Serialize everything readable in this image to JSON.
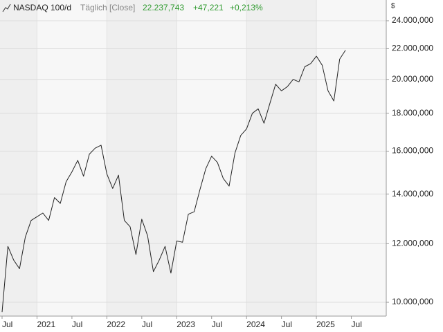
{
  "chart_data": {
    "type": "line",
    "title": "NASDAQ 100/d",
    "subtitle": "Täglich [Close]",
    "last": "22.237,743",
    "change": "+47,221",
    "change_pct": "+0,213%",
    "y_unit": "$",
    "log_y": true,
    "grid": true,
    "x": [
      "2020-07",
      "2020-08",
      "2020-09",
      "2020-10",
      "2020-11",
      "2020-12",
      "2021-01",
      "2021-02",
      "2021-03",
      "2021-04",
      "2021-05",
      "2021-06",
      "2021-07",
      "2021-08",
      "2021-09",
      "2021-10",
      "2021-11",
      "2021-12",
      "2022-01",
      "2022-02",
      "2022-03",
      "2022-04",
      "2022-05",
      "2022-06",
      "2022-07",
      "2022-08",
      "2022-09",
      "2022-10",
      "2022-11",
      "2022-12",
      "2023-01",
      "2023-02",
      "2023-03",
      "2023-04",
      "2023-05",
      "2023-06",
      "2023-07",
      "2023-08",
      "2023-09",
      "2023-10",
      "2023-11",
      "2023-12",
      "2024-01",
      "2024-02",
      "2024-03",
      "2024-04",
      "2024-05",
      "2024-06",
      "2024-07",
      "2024-08",
      "2024-09",
      "2024-10",
      "2024-11",
      "2024-12",
      "2025-01",
      "2025-02",
      "2025-03",
      "2025-04",
      "2025-05",
      "2025-06"
    ],
    "series": [
      {
        "name": "NASDAQ 100/d",
        "color": "#222222",
        "values": [
          9700,
          11900,
          11400,
          11100,
          12250,
          12900,
          13050,
          13200,
          12900,
          13850,
          13600,
          14550,
          15000,
          15550,
          14800,
          15850,
          16150,
          16300,
          14900,
          14250,
          14850,
          12900,
          12650,
          11600,
          12950,
          12300,
          11000,
          11400,
          11900,
          10950,
          12100,
          12050,
          13150,
          13250,
          14200,
          15150,
          15750,
          15450,
          14700,
          14350,
          15900,
          16800,
          17150,
          18000,
          18250,
          17450,
          18550,
          19700,
          19300,
          19550,
          20000,
          19850,
          20800,
          21000,
          21500,
          20900,
          19300,
          18700,
          21300,
          21900
        ]
      }
    ],
    "xlim": [
      "2020-07",
      "2026-01"
    ],
    "xticks": [
      {
        "value": "2020-07",
        "label": "Jul"
      },
      {
        "value": "2021-01",
        "label": "2021"
      },
      {
        "value": "2021-07",
        "label": "Jul"
      },
      {
        "value": "2022-01",
        "label": "2022"
      },
      {
        "value": "2022-07",
        "label": "Jul"
      },
      {
        "value": "2023-01",
        "label": "2023"
      },
      {
        "value": "2023-07",
        "label": "Jul"
      },
      {
        "value": "2024-01",
        "label": "2024"
      },
      {
        "value": "2024-07",
        "label": "Jul"
      },
      {
        "value": "2025-01",
        "label": "2025"
      },
      {
        "value": "2025-07",
        "label": "Jul"
      }
    ],
    "ylim": [
      9580,
      25600
    ],
    "yticks": [
      {
        "value": 10000,
        "label": "10.000,000"
      },
      {
        "value": 12000,
        "label": "12.000,000"
      },
      {
        "value": 14000,
        "label": "14.000,000"
      },
      {
        "value": 16000,
        "label": "16.000,000"
      },
      {
        "value": 18000,
        "label": "18.000,000"
      },
      {
        "value": 20000,
        "label": "20.000,000"
      },
      {
        "value": 22000,
        "label": "22.000,000"
      },
      {
        "value": 24000,
        "label": "24.000,000"
      }
    ]
  }
}
